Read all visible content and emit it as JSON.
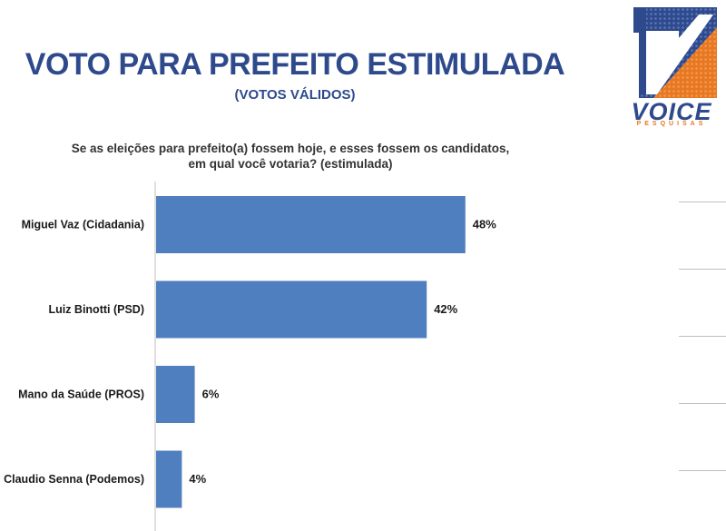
{
  "header": {
    "title": "VOTO PARA PREFEITO ESTIMULADA",
    "subtitle": "(VOTOS VÁLIDOS)",
    "question": "Se as eleições para prefeito(a) fossem hoje, e esses fossem os candidatos, em qual você votaria? (estimulada)"
  },
  "logo": {
    "word": "VOICE",
    "sub": "PESQUISAS",
    "colors": {
      "blue": "#2e4a8c",
      "orange": "#e87722"
    }
  },
  "colors": {
    "bar": "#4f7fbf",
    "axis": "#bfbfbf",
    "title": "#2e4a8c"
  },
  "chart_data": {
    "type": "bar",
    "orientation": "horizontal",
    "categories": [
      "Miguel Vaz (Cidadania)",
      "Luiz Binotti (PSD)",
      "Mano da Saúde (PROS)",
      "Claudio Senna (Podemos)"
    ],
    "values": [
      48,
      42,
      6,
      4
    ],
    "value_labels": [
      "48%",
      "42%",
      "6%",
      "4%"
    ],
    "unit": "%",
    "xlim": [
      0,
      55
    ],
    "grid": false,
    "legend": "none"
  }
}
